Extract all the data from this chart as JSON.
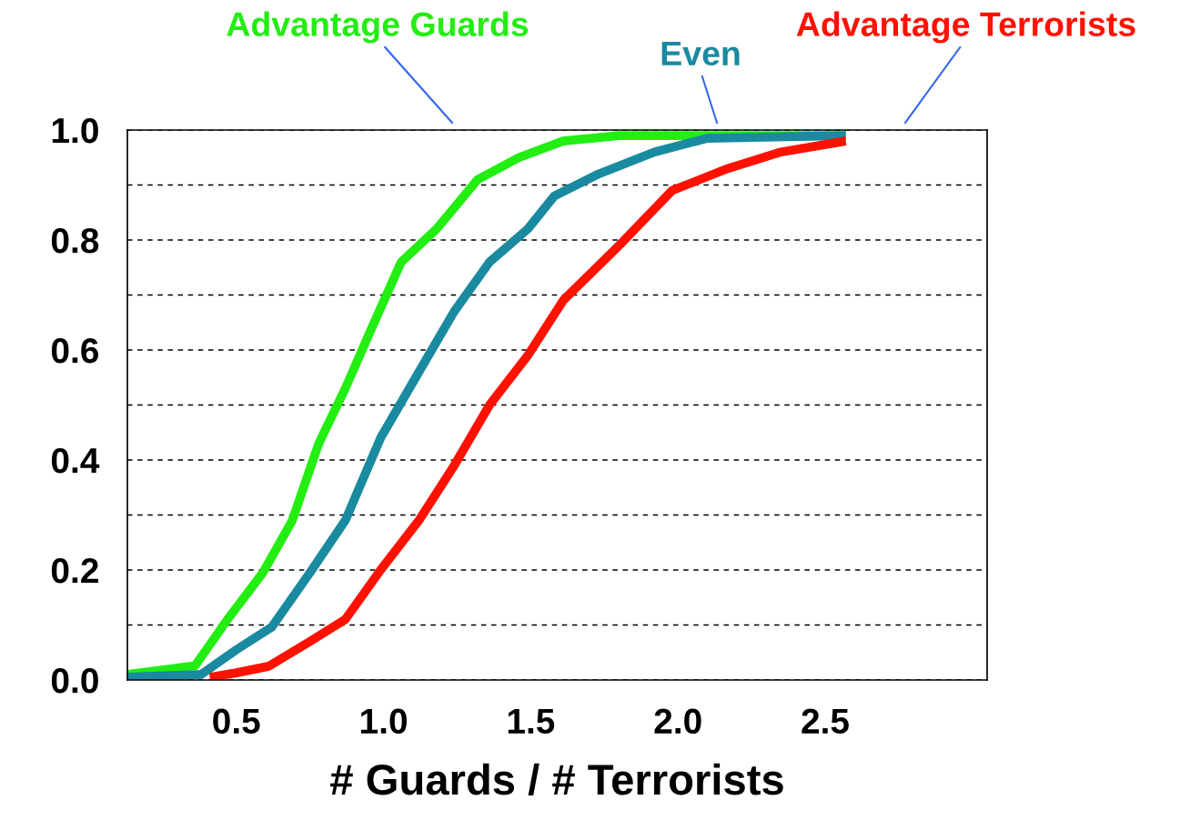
{
  "chart_data": {
    "type": "line",
    "xlabel": "# Guards / # Terrorists",
    "xlim": [
      0.13,
      3.05
    ],
    "xticks": [
      0.5,
      {
        "value": 1,
        "label": "1.0"
      },
      1.5,
      {
        "value": 2,
        "label": "2.0"
      },
      2.5
    ],
    "ylim": [
      0,
      1
    ],
    "yticks": [
      {
        "value": 0,
        "label": "0.0"
      },
      {
        "value": 0.1,
        "label": null
      },
      {
        "value": 0.2,
        "label": "0.2"
      },
      {
        "value": 0.3,
        "label": null
      },
      {
        "value": 0.4,
        "label": "0.4"
      },
      {
        "value": 0.5,
        "label": null
      },
      {
        "value": 0.6,
        "label": "0.6"
      },
      {
        "value": 0.7,
        "label": null
      },
      {
        "value": 0.8,
        "label": "0.8"
      },
      {
        "value": 0.9,
        "label": null
      },
      {
        "value": 1.0,
        "label": "1.0"
      }
    ],
    "grid": "y",
    "line_style": "solid",
    "marker": "none",
    "series": [
      {
        "name": "Advantage Guards",
        "color": "#22ee11",
        "x": [
          0.13,
          0.36,
          0.47,
          0.59,
          0.69,
          0.78,
          0.87,
          0.96,
          1.06,
          1.18,
          1.32,
          1.46,
          1.61,
          1.8,
          2.1,
          2.57
        ],
        "values": [
          0.01,
          0.026,
          0.11,
          0.195,
          0.29,
          0.43,
          0.53,
          0.64,
          0.76,
          0.82,
          0.91,
          0.95,
          0.98,
          0.99,
          0.99,
          0.99
        ]
      },
      {
        "name": "Even",
        "color": "#1a8aa0",
        "x": [
          0.13,
          0.38,
          0.5,
          0.62,
          0.75,
          0.87,
          0.99,
          1.12,
          1.24,
          1.36,
          1.49,
          1.58,
          1.73,
          1.92,
          2.1,
          2.57
        ],
        "values": [
          0.005,
          0.01,
          0.055,
          0.096,
          0.195,
          0.29,
          0.44,
          0.56,
          0.67,
          0.76,
          0.82,
          0.88,
          0.92,
          0.96,
          0.985,
          0.99
        ]
      },
      {
        "name": "Advantage Terrorists",
        "color": "#ff1100",
        "x": [
          0.41,
          0.5,
          0.61,
          0.75,
          0.87,
          0.99,
          1.12,
          1.24,
          1.36,
          1.49,
          1.61,
          1.8,
          1.98,
          2.17,
          2.35,
          2.57
        ],
        "values": [
          0.005,
          0.013,
          0.025,
          0.07,
          0.11,
          0.2,
          0.29,
          0.39,
          0.5,
          0.59,
          0.69,
          0.79,
          0.89,
          0.93,
          0.96,
          0.98
        ]
      }
    ]
  }
}
